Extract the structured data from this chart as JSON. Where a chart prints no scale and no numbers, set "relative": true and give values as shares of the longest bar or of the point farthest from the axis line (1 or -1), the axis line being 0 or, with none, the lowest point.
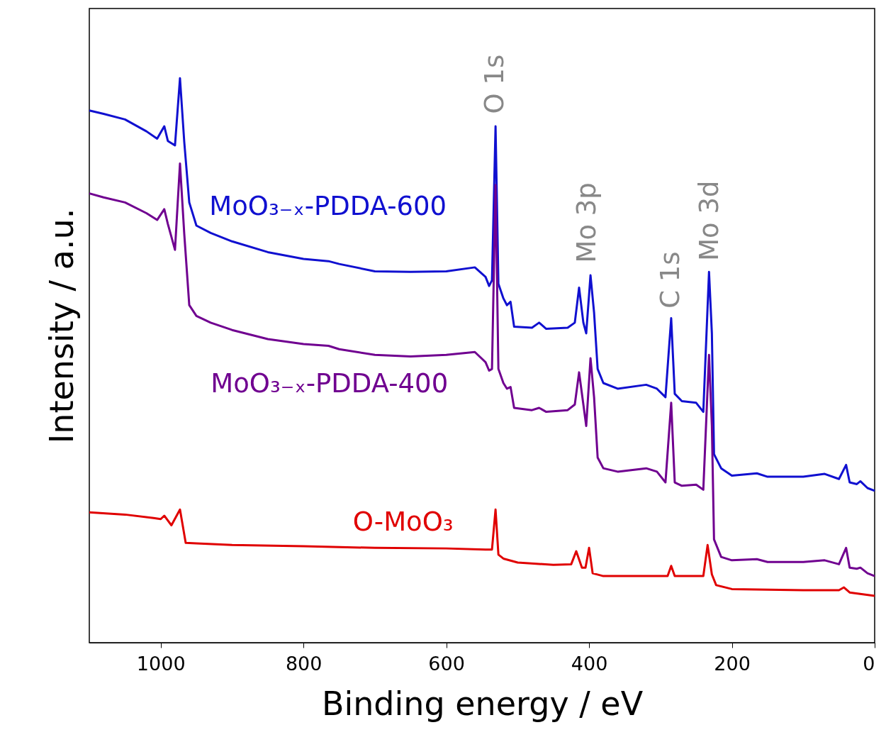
{
  "chart_data": {
    "type": "line",
    "relative": true,
    "xlabel": "Binding energy / eV",
    "ylabel": "Intensity / a.u.",
    "xlim": [
      1100,
      0
    ],
    "xticks": [
      1000,
      800,
      600,
      400,
      200,
      0
    ],
    "tick_labels": "x",
    "grid": false,
    "marker": "none",
    "line_style": "solid",
    "series": [
      {
        "name": "MoO₃₋ₓ-PDDA-600",
        "color": "#1010d0",
        "x": [
          1100,
          1080,
          1050,
          1020,
          1005,
          995,
          990,
          980,
          973,
          967,
          960,
          950,
          930,
          900,
          850,
          800,
          765,
          750,
          700,
          650,
          600,
          560,
          545,
          540,
          536,
          531,
          527,
          520,
          515,
          510,
          505,
          480,
          470,
          460,
          430,
          420,
          414,
          408,
          404,
          398,
          393,
          388,
          380,
          360,
          320,
          305,
          293,
          285,
          280,
          270,
          250,
          240,
          232,
          228,
          225,
          215,
          200,
          165,
          150,
          100,
          70,
          50,
          40,
          35,
          25,
          20,
          10,
          0
        ],
        "values": [
          0.943,
          0.937,
          0.927,
          0.906,
          0.893,
          0.915,
          0.889,
          0.881,
          1,
          0.887,
          0.78,
          0.739,
          0.726,
          0.711,
          0.692,
          0.68,
          0.676,
          0.671,
          0.658,
          0.657,
          0.658,
          0.665,
          0.648,
          0.632,
          0.642,
          0.915,
          0.636,
          0.61,
          0.598,
          0.604,
          0.56,
          0.558,
          0.567,
          0.556,
          0.558,
          0.567,
          0.629,
          0.567,
          0.548,
          0.651,
          0.585,
          0.485,
          0.46,
          0.45,
          0.457,
          0.45,
          0.435,
          0.575,
          0.441,
          0.428,
          0.425,
          0.409,
          0.657,
          0.548,
          0.334,
          0.309,
          0.296,
          0.3,
          0.294,
          0.294,
          0.299,
          0.29,
          0.315,
          0.284,
          0.281,
          0.286,
          0.274,
          0.269
        ]
      },
      {
        "name": "MoO₃₋ₓ-PDDA-400",
        "color": "#700090",
        "x": [
          1100,
          1080,
          1050,
          1020,
          1005,
          995,
          990,
          980,
          973,
          967,
          960,
          950,
          930,
          900,
          850,
          800,
          765,
          750,
          700,
          650,
          600,
          560,
          545,
          540,
          536,
          531,
          527,
          520,
          515,
          510,
          505,
          480,
          470,
          460,
          430,
          420,
          414,
          408,
          404,
          398,
          393,
          388,
          380,
          360,
          320,
          305,
          293,
          285,
          280,
          270,
          250,
          240,
          232,
          228,
          225,
          215,
          200,
          165,
          150,
          100,
          70,
          50,
          40,
          35,
          25,
          20,
          10,
          0
        ],
        "values": [
          0.796,
          0.789,
          0.78,
          0.761,
          0.749,
          0.768,
          0.742,
          0.696,
          0.849,
          0.724,
          0.598,
          0.579,
          0.567,
          0.554,
          0.538,
          0.529,
          0.526,
          0.52,
          0.51,
          0.507,
          0.51,
          0.515,
          0.497,
          0.482,
          0.485,
          0.811,
          0.485,
          0.46,
          0.45,
          0.453,
          0.416,
          0.412,
          0.416,
          0.409,
          0.412,
          0.422,
          0.479,
          0.422,
          0.384,
          0.504,
          0.435,
          0.328,
          0.309,
          0.303,
          0.309,
          0.303,
          0.284,
          0.425,
          0.284,
          0.278,
          0.28,
          0.271,
          0.51,
          0.384,
          0.183,
          0.152,
          0.146,
          0.148,
          0.143,
          0.143,
          0.146,
          0.139,
          0.168,
          0.133,
          0.131,
          0.133,
          0.123,
          0.118
        ]
      },
      {
        "name": "O-MoO₃",
        "color": "#e00000",
        "x": [
          1100,
          1050,
          1010,
          1000,
          995,
          985,
          973,
          965,
          950,
          900,
          800,
          700,
          600,
          545,
          536,
          531,
          527,
          520,
          500,
          450,
          425,
          418,
          410,
          405,
          400,
          395,
          380,
          300,
          290,
          285,
          280,
          250,
          240,
          234,
          228,
          222,
          200,
          100,
          50,
          43,
          35,
          0
        ],
        "values": [
          0.231,
          0.227,
          0.221,
          0.219,
          0.225,
          0.208,
          0.236,
          0.177,
          0.176,
          0.173,
          0.171,
          0.168,
          0.167,
          0.165,
          0.165,
          0.236,
          0.156,
          0.149,
          0.142,
          0.138,
          0.139,
          0.162,
          0.133,
          0.133,
          0.168,
          0.123,
          0.118,
          0.118,
          0.118,
          0.136,
          0.118,
          0.118,
          0.118,
          0.173,
          0.121,
          0.102,
          0.095,
          0.093,
          0.093,
          0.098,
          0.089,
          0.083
        ]
      }
    ],
    "annotations": [
      "O 1s",
      "Mo 3p",
      "C 1s",
      "Mo 3d"
    ]
  }
}
